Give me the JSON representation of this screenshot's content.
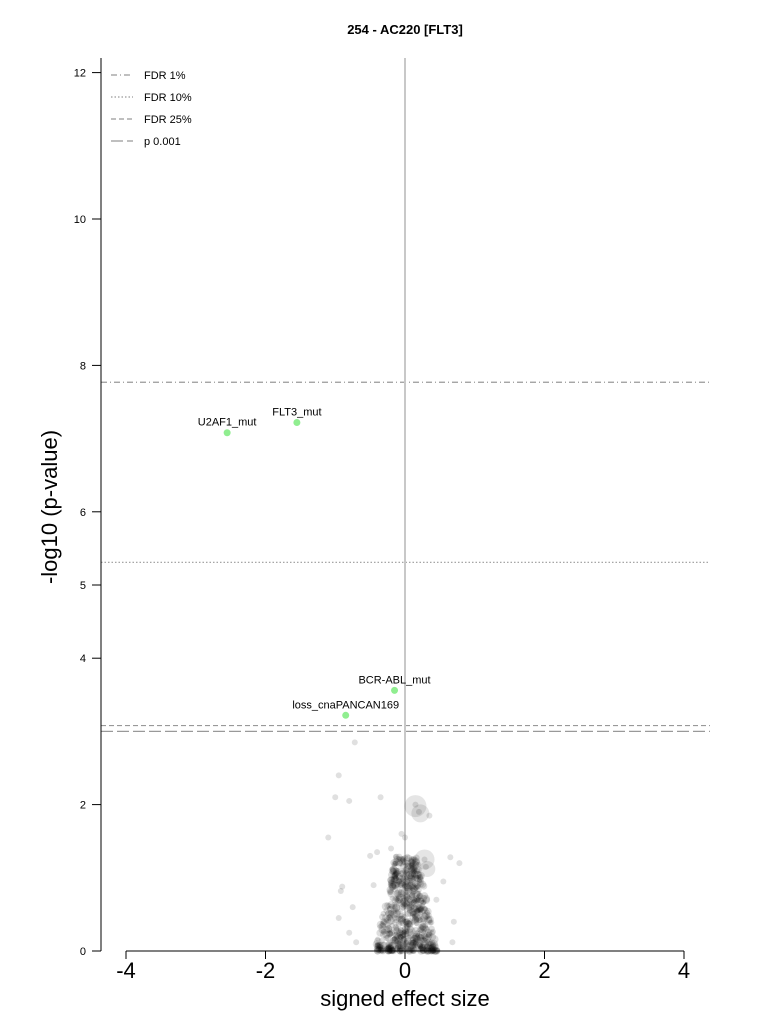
{
  "chart_data": {
    "type": "scatter",
    "title": "254 - AC220 [FLT3]",
    "xlabel": "signed effect size",
    "ylabel": "-log10 (p-value)",
    "xlim": [
      -4.35,
      4.35
    ],
    "ylim": [
      0,
      12.2
    ],
    "x_ticks": [
      -4,
      -2,
      0,
      2,
      4
    ],
    "x_tick_labels": [
      "-4",
      "-2",
      "0",
      "2",
      "4"
    ],
    "y_ticks": [
      0,
      2,
      4,
      5,
      6,
      8,
      10,
      12
    ],
    "y_tick_labels": [
      "0",
      "2",
      "4",
      "5",
      "6",
      "8",
      "10",
      "12"
    ],
    "grid": false,
    "legend_position": "top-left",
    "thresholds": [
      {
        "name": "FDR 1%",
        "y": 7.77,
        "style": "dashdot"
      },
      {
        "name": "FDR 10%",
        "y": 5.31,
        "style": "dotted"
      },
      {
        "name": "FDR 25%",
        "y": 3.08,
        "style": "dashed"
      },
      {
        "name": "p 0.001",
        "y": 3.0,
        "style": "longdash"
      }
    ],
    "highlighted_points": [
      {
        "label": "U2AF1_mut",
        "x": -2.55,
        "y": 7.08
      },
      {
        "label": "FLT3_mut",
        "x": -1.55,
        "y": 7.22
      },
      {
        "label": "BCR-ABL_mut",
        "x": -0.15,
        "y": 3.56
      },
      {
        "label": "loss_cnaPANCAN169",
        "x": -0.85,
        "y": 3.22
      }
    ],
    "background_points": [
      {
        "x": -0.72,
        "y": 2.85
      },
      {
        "x": -0.95,
        "y": 2.4
      },
      {
        "x": -1.0,
        "y": 2.1
      },
      {
        "x": -0.8,
        "y": 2.05
      },
      {
        "x": -0.35,
        "y": 2.1
      },
      {
        "x": -1.1,
        "y": 1.55
      },
      {
        "x": 0.15,
        "y": 2.0
      },
      {
        "x": 0.2,
        "y": 1.9
      },
      {
        "x": 0.35,
        "y": 1.85
      },
      {
        "x": -0.05,
        "y": 1.6
      },
      {
        "x": 0.0,
        "y": 1.55
      },
      {
        "x": 0.28,
        "y": 1.25
      },
      {
        "x": 0.3,
        "y": 1.15
      },
      {
        "x": -0.4,
        "y": 1.35
      },
      {
        "x": -0.5,
        "y": 1.3
      },
      {
        "x": 0.65,
        "y": 1.28
      },
      {
        "x": 0.78,
        "y": 1.2
      },
      {
        "x": -0.2,
        "y": 1.4
      },
      {
        "x": -0.9,
        "y": 0.88
      },
      {
        "x": -0.92,
        "y": 0.82
      },
      {
        "x": 0.55,
        "y": 0.95
      },
      {
        "x": -0.75,
        "y": 0.6
      },
      {
        "x": -0.95,
        "y": 0.45
      },
      {
        "x": -0.8,
        "y": 0.25
      },
      {
        "x": -0.7,
        "y": 0.12
      },
      {
        "x": 0.7,
        "y": 0.4
      },
      {
        "x": 0.68,
        "y": 0.12
      },
      {
        "x": -0.45,
        "y": 0.9
      },
      {
        "x": 0.45,
        "y": 0.7
      }
    ],
    "point_color_highlight": "#90ee90",
    "point_color_background": "#000000",
    "threshold_color": "#999999",
    "zero_line_color": "#c8c8c8"
  }
}
